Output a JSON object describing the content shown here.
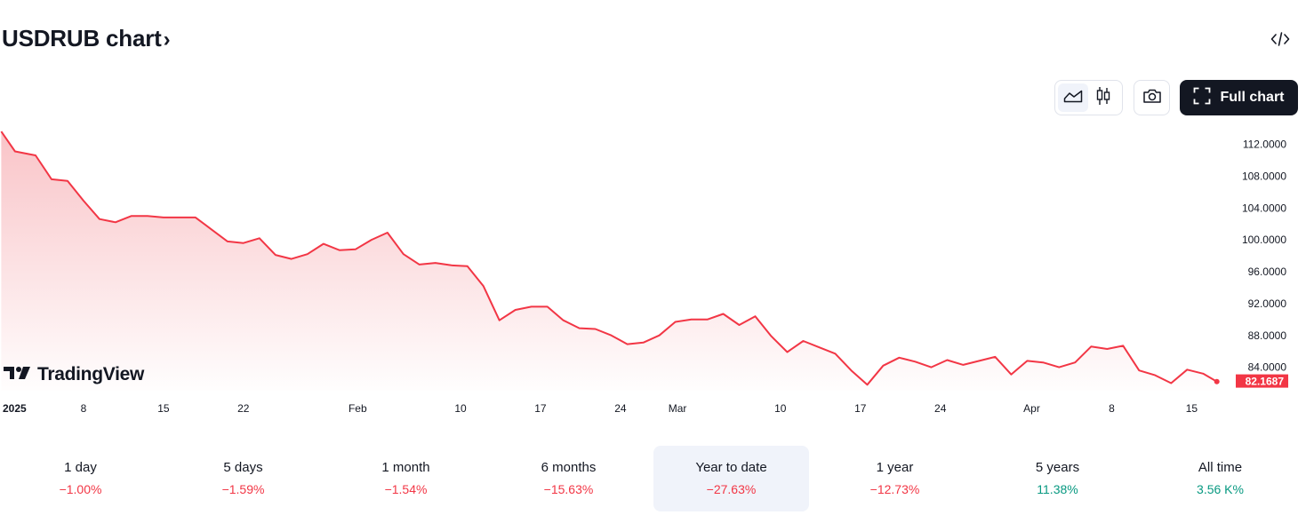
{
  "header": {
    "title": "USDRUB chart",
    "chevron": "›",
    "embed_icon": "code-icon",
    "line_type_icon": "area-chart-icon",
    "candle_type_icon": "candlestick-icon",
    "snapshot_icon": "camera-icon",
    "full_chart_label": "Full chart",
    "full_chart_icon": "fullscreen-icon"
  },
  "logo": {
    "text": "TradingView"
  },
  "colors": {
    "line": "#f23645",
    "area_top": "#f7b0b5",
    "negative": "#f23645",
    "positive": "#089981",
    "active_period_bg": "#f0f3fa"
  },
  "chart_data": {
    "type": "area",
    "title": "",
    "xlabel": "",
    "ylabel": "",
    "ylim": [
      80.5,
      114.4
    ],
    "yticks": [
      "112.0000",
      "108.0000",
      "104.0000",
      "100.0000",
      "96.0000",
      "92.0000",
      "88.0000",
      "84.0000"
    ],
    "ytick_values": [
      112,
      108,
      104,
      100,
      96,
      92,
      88,
      84
    ],
    "xticks": [
      {
        "label": "2025",
        "day": 0,
        "bold": true
      },
      {
        "label": "8",
        "day": 7
      },
      {
        "label": "15",
        "day": 14
      },
      {
        "label": "22",
        "day": 21
      },
      {
        "label": "Feb",
        "day": 31
      },
      {
        "label": "10",
        "day": 40
      },
      {
        "label": "17",
        "day": 47
      },
      {
        "label": "24",
        "day": 54
      },
      {
        "label": "Mar",
        "day": 59
      },
      {
        "label": "10",
        "day": 68
      },
      {
        "label": "17",
        "day": 75
      },
      {
        "label": "24",
        "day": 82
      },
      {
        "label": "Apr",
        "day": 90
      },
      {
        "label": "8",
        "day": 97
      },
      {
        "label": "15",
        "day": 104
      }
    ],
    "series": [
      {
        "points": [
          [
            -0.2,
            113.5
          ],
          [
            1,
            111
          ],
          [
            2.8,
            110.5
          ],
          [
            4.2,
            107.5
          ],
          [
            5.6,
            107.3
          ],
          [
            7,
            104.8
          ],
          [
            8.4,
            102.5
          ],
          [
            9.8,
            102.1
          ],
          [
            11.2,
            102.9
          ],
          [
            12.6,
            102.9
          ],
          [
            14,
            102.7
          ],
          [
            15.4,
            102.7
          ],
          [
            16.8,
            102.7
          ],
          [
            18.2,
            101.2
          ],
          [
            19.6,
            99.7
          ],
          [
            21,
            99.5
          ],
          [
            22.4,
            100.1
          ],
          [
            23.8,
            98
          ],
          [
            25.2,
            97.5
          ],
          [
            26.6,
            98.1
          ],
          [
            28,
            99.4
          ],
          [
            29.4,
            98.6
          ],
          [
            30.8,
            98.7
          ],
          [
            32.2,
            99.9
          ],
          [
            33.6,
            100.8
          ],
          [
            35,
            98.1
          ],
          [
            36.4,
            96.8
          ],
          [
            37.8,
            97
          ],
          [
            39.2,
            96.7
          ],
          [
            40.6,
            96.6
          ],
          [
            42,
            94.1
          ],
          [
            43.4,
            89.8
          ],
          [
            44.8,
            91.1
          ],
          [
            46.2,
            91.5
          ],
          [
            47.6,
            91.5
          ],
          [
            49,
            89.8
          ],
          [
            50.4,
            88.8
          ],
          [
            51.8,
            88.7
          ],
          [
            53.2,
            87.9
          ],
          [
            54.6,
            86.8
          ],
          [
            56,
            87
          ],
          [
            57.4,
            87.9
          ],
          [
            58.8,
            89.6
          ],
          [
            60.2,
            89.9
          ],
          [
            61.6,
            89.9
          ],
          [
            63,
            90.6
          ],
          [
            64.4,
            89.2
          ],
          [
            65.8,
            90.3
          ],
          [
            67.2,
            87.8
          ],
          [
            68.6,
            85.8
          ],
          [
            70,
            87.2
          ],
          [
            71.4,
            86.4
          ],
          [
            72.8,
            85.6
          ],
          [
            74.2,
            83.5
          ],
          [
            75.6,
            81.7
          ],
          [
            77,
            84.1
          ],
          [
            78.4,
            85.1
          ],
          [
            79.8,
            84.6
          ],
          [
            81.2,
            83.9
          ],
          [
            82.6,
            84.8
          ],
          [
            84,
            84.2
          ],
          [
            85.4,
            84.7
          ],
          [
            86.8,
            85.2
          ],
          [
            88.2,
            83
          ],
          [
            89.6,
            84.7
          ],
          [
            91,
            84.5
          ],
          [
            92.4,
            83.9
          ],
          [
            93.8,
            84.5
          ],
          [
            95.2,
            86.5
          ],
          [
            96.6,
            86.2
          ],
          [
            98,
            86.6
          ],
          [
            99.4,
            83.5
          ],
          [
            100.8,
            82.9
          ],
          [
            102.2,
            81.9
          ],
          [
            103.6,
            83.6
          ],
          [
            105,
            83.1
          ],
          [
            106.2,
            82.1
          ]
        ]
      }
    ],
    "last_value_label": "82.1687",
    "last_value": 82.1687
  },
  "periods": [
    {
      "label": "1 day",
      "value": "−1.00%",
      "sign": "neg",
      "active": false
    },
    {
      "label": "5 days",
      "value": "−1.59%",
      "sign": "neg",
      "active": false
    },
    {
      "label": "1 month",
      "value": "−1.54%",
      "sign": "neg",
      "active": false
    },
    {
      "label": "6 months",
      "value": "−15.63%",
      "sign": "neg",
      "active": false
    },
    {
      "label": "Year to date",
      "value": "−27.63%",
      "sign": "neg",
      "active": true
    },
    {
      "label": "1 year",
      "value": "−12.73%",
      "sign": "neg",
      "active": false
    },
    {
      "label": "5 years",
      "value": "11.38%",
      "sign": "pos",
      "active": false
    },
    {
      "label": "All time",
      "value": "3.56 K%",
      "sign": "pos",
      "active": false
    }
  ]
}
